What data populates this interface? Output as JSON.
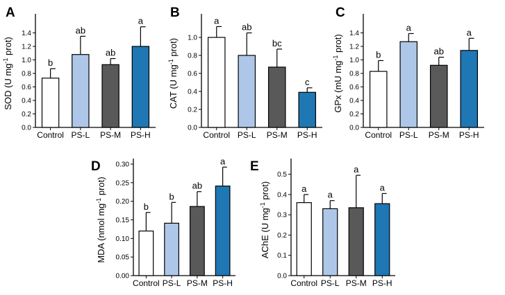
{
  "chart_data": [
    {
      "id": "A",
      "type": "bar",
      "panel_label": "A",
      "ylabel_pre": "SOD (U mg",
      "ylabel_sup": "-1",
      "ylabel_post": " prot)",
      "ylim": [
        0,
        1.6
      ],
      "yticks": [
        "0.0",
        "0.2",
        "0.4",
        "0.6",
        "0.8",
        "1.0",
        "1.2",
        "1.4"
      ],
      "categories": [
        "Control",
        "PS-L",
        "PS-M",
        "PS-H"
      ],
      "values": [
        0.73,
        1.08,
        0.93,
        1.2
      ],
      "errors": [
        0.14,
        0.27,
        0.09,
        0.29
      ],
      "significance": [
        "b",
        "ab",
        "ab",
        "a"
      ],
      "colors": [
        "#ffffff",
        "#aec7e8",
        "#595959",
        "#1f77b4"
      ]
    },
    {
      "id": "B",
      "type": "bar",
      "panel_label": "B",
      "ylabel_pre": "CAT (U mg",
      "ylabel_sup": "-1",
      "ylabel_post": " prot)",
      "ylim": [
        0,
        1.2
      ],
      "yticks": [
        "0.0",
        "0.2",
        "0.4",
        "0.6",
        "0.8",
        "1.0"
      ],
      "categories": [
        "Control",
        "PS-L",
        "PS-M",
        "PS-H"
      ],
      "values": [
        1.0,
        0.8,
        0.67,
        0.39
      ],
      "errors": [
        0.12,
        0.25,
        0.2,
        0.05
      ],
      "significance": [
        "a",
        "ab",
        "bc",
        "c"
      ],
      "colors": [
        "#ffffff",
        "#aec7e8",
        "#595959",
        "#1f77b4"
      ]
    },
    {
      "id": "C",
      "type": "bar",
      "panel_label": "C",
      "ylabel_pre": "GPx (mU mg",
      "ylabel_sup": "-1",
      "ylabel_post": " prot)",
      "ylim": [
        0,
        1.6
      ],
      "yticks": [
        "0.0",
        "0.2",
        "0.4",
        "0.6",
        "0.8",
        "1.0",
        "1.2",
        "1.4"
      ],
      "categories": [
        "Control",
        "PS-L",
        "PS-M",
        "PS-H"
      ],
      "values": [
        0.83,
        1.27,
        0.92,
        1.14
      ],
      "errors": [
        0.16,
        0.12,
        0.12,
        0.18
      ],
      "significance": [
        "b",
        "a",
        "ab",
        "a"
      ],
      "colors": [
        "#ffffff",
        "#aec7e8",
        "#595959",
        "#1f77b4"
      ]
    },
    {
      "id": "D",
      "type": "bar",
      "panel_label": "D",
      "ylabel_pre": "MDA (nmol mg",
      "ylabel_sup": "-1",
      "ylabel_post": " prot)",
      "ylim": [
        0,
        0.3
      ],
      "yticks": [
        "0.00",
        "0.05",
        "0.10",
        "0.15",
        "0.20",
        "0.25",
        "0.30"
      ],
      "categories": [
        "Control",
        "PS-L",
        "PS-M",
        "PS-H"
      ],
      "values": [
        0.12,
        0.141,
        0.186,
        0.241
      ],
      "errors": [
        0.05,
        0.056,
        0.04,
        0.051
      ],
      "significance": [
        "b",
        "b",
        "ab",
        "a"
      ],
      "colors": [
        "#ffffff",
        "#aec7e8",
        "#595959",
        "#1f77b4"
      ]
    },
    {
      "id": "E",
      "type": "bar",
      "panel_label": "E",
      "ylabel_pre": "AChE (U mg",
      "ylabel_sup": "-1",
      "ylabel_post": " prot)",
      "ylim": [
        0,
        0.55
      ],
      "yticks": [
        "0.0",
        "0.1",
        "0.2",
        "0.3",
        "0.4",
        "0.5"
      ],
      "categories": [
        "Control",
        "PS-L",
        "PS-M",
        "PS-H"
      ],
      "values": [
        0.36,
        0.33,
        0.335,
        0.355
      ],
      "errors": [
        0.04,
        0.04,
        0.16,
        0.05
      ],
      "significance": [
        "a",
        "a",
        "a",
        "a"
      ],
      "colors": [
        "#ffffff",
        "#aec7e8",
        "#595959",
        "#1f77b4"
      ]
    }
  ]
}
